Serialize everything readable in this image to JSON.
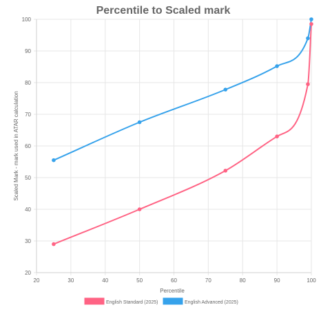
{
  "chart_data": {
    "type": "line",
    "title": "Percentile to Scaled mark",
    "xlabel": "Percentile",
    "ylabel": "Scaled Mark - mark used in ATAR calculation",
    "xlim": [
      20,
      100
    ],
    "ylim": [
      20,
      100
    ],
    "xticks": [
      20,
      30,
      40,
      50,
      60,
      70,
      80,
      90,
      100
    ],
    "yticks": [
      20,
      30,
      40,
      50,
      60,
      70,
      80,
      90,
      100
    ],
    "grid": true,
    "legend_position": "bottom",
    "series": [
      {
        "name": "English Standard (2025)",
        "color": "#ff6384",
        "x": [
          25,
          50,
          75,
          90,
          99,
          100
        ],
        "y": [
          29,
          40,
          52.2,
          63,
          79.5,
          98.5
        ]
      },
      {
        "name": "English Advanced (2025)",
        "color": "#36a2eb",
        "x": [
          25,
          50,
          75,
          90,
          99,
          100
        ],
        "y": [
          55.5,
          67.5,
          77.8,
          85.2,
          94,
          100
        ]
      }
    ]
  }
}
